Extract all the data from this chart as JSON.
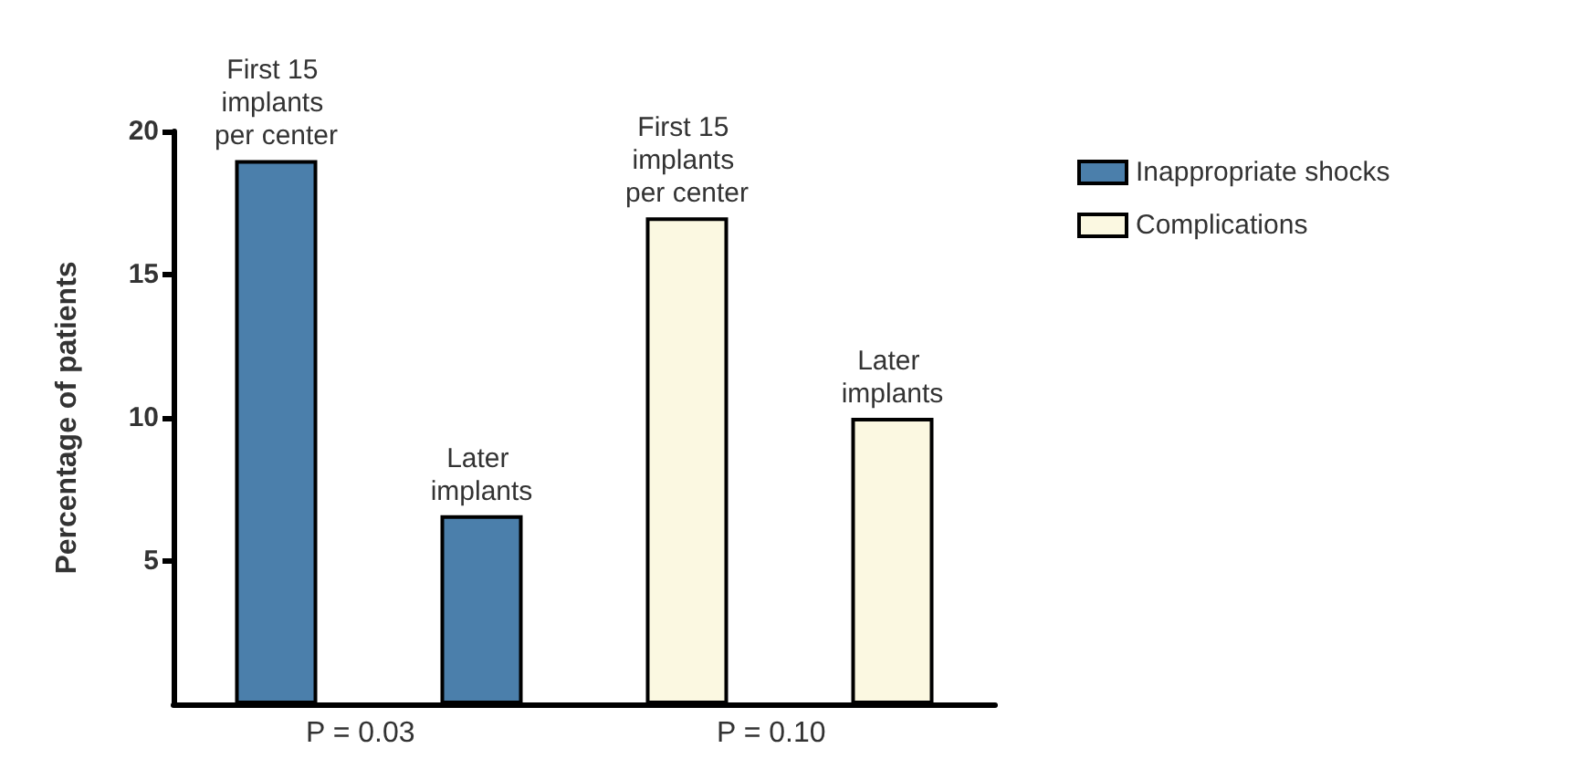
{
  "chart_data": {
    "type": "bar",
    "ylabel": "Percentage of patients",
    "categories": [
      "First 15 implants per center",
      "Later implants",
      "First 15 implants per center",
      "Later implants"
    ],
    "series": [
      {
        "name": "Inappropriate shocks",
        "color": "#4b7fab",
        "values": [
          19,
          6.6,
          null,
          null
        ]
      },
      {
        "name": "Complications",
        "color": "#fbf8e1",
        "values": [
          null,
          null,
          17,
          10
        ]
      }
    ],
    "ylim": [
      0,
      20
    ],
    "yticks": [
      5,
      10,
      15,
      20
    ],
    "grid": false,
    "legend": "right",
    "annotations": [
      "P = 0.03",
      "P = 0.10"
    ]
  }
}
